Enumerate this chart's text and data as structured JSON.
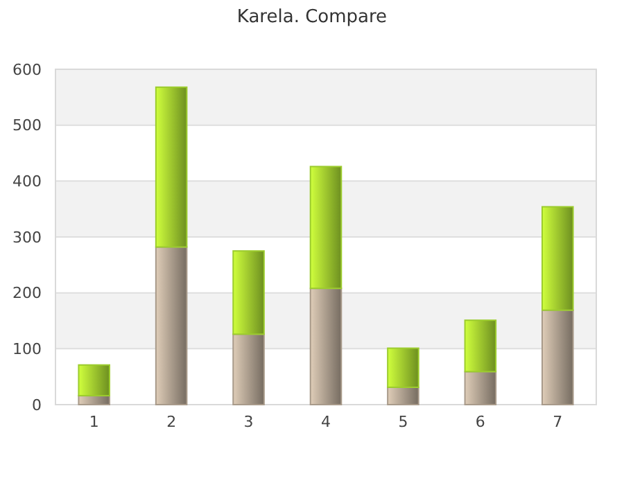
{
  "chart_data": {
    "type": "bar",
    "title": "Karela. Compare",
    "categories": [
      "1",
      "2",
      "3",
      "4",
      "5",
      "6",
      "7"
    ],
    "stacked": true,
    "series": [
      {
        "color": "#a89a8a",
        "values": [
          16,
          282,
          126,
          208,
          31,
          59,
          169
        ]
      },
      {
        "color": "#9ccc2e",
        "values": [
          55,
          286,
          149,
          218,
          70,
          92,
          185
        ]
      }
    ],
    "ylim": [
      0,
      600
    ],
    "yticks": [
      0,
      100,
      200,
      300,
      400,
      500,
      600
    ],
    "grid": "y"
  }
}
